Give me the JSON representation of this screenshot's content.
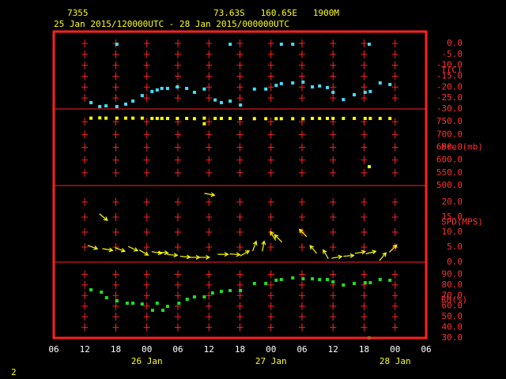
{
  "header": {
    "station": "7355",
    "location": "73.63S   160.65E   1900M",
    "period": "25 Jan 2015/120000UTC - 28 Jan 2015/000000UTC"
  },
  "footer": "2",
  "chart_data": [
    {
      "type": "scatter",
      "ylabel": "T(C)",
      "color": "#40e0ff",
      "ylim": [
        -30,
        5.4
      ],
      "yticks": [
        {
          "value": 0,
          "label": "0.0"
        },
        {
          "value": -5,
          "label": "-5.0"
        },
        {
          "value": -10,
          "label": "-10.0"
        },
        {
          "value": -15,
          "label": "-15.0"
        },
        {
          "value": -20,
          "label": "-20.0"
        },
        {
          "value": -25,
          "label": "-25.0"
        },
        {
          "value": -30,
          "label": "-30.0"
        }
      ],
      "x": [
        7.2,
        8.9,
        10.1,
        12.2,
        12.2,
        13.9,
        15.3,
        17.1,
        19.0,
        20.0,
        20.9,
        22.0,
        23.9,
        25.7,
        27.2,
        29.1,
        31.2,
        32.4,
        34.1,
        34.1,
        36.1,
        38.8,
        41.0,
        43.0,
        44.0,
        44.0,
        46.2,
        46.2,
        48.2,
        50.0,
        51.4,
        52.9,
        54.0,
        56.0,
        58.1,
        60.2,
        61.2,
        61.0,
        63.1,
        65.0
      ],
      "values": [
        -27.1,
        -28.9,
        -28.6,
        -28.9,
        -0.4,
        -27.8,
        -26.4,
        -23.9,
        -22.0,
        -21.3,
        -20.6,
        -20.6,
        -19.9,
        -20.6,
        -22.4,
        -20.9,
        -25.9,
        -27.1,
        -26.4,
        -0.4,
        -28.2,
        -20.9,
        -20.9,
        -19.2,
        -18.4,
        -0.4,
        -18.1,
        -0.4,
        -17.7,
        -19.9,
        -19.5,
        -20.2,
        -22.4,
        -25.7,
        -23.5,
        -22.4,
        -22.0,
        -0.4,
        -18.1,
        -18.8
      ]
    },
    {
      "type": "scatter",
      "ylabel": "Pre (mb)",
      "color": "#ffff00",
      "ylim": [
        500,
        800
      ],
      "yticks": [
        {
          "value": 750,
          "label": "750.0"
        },
        {
          "value": 700,
          "label": "700.0"
        },
        {
          "value": 650,
          "label": "650.0"
        },
        {
          "value": 600,
          "label": "600.0"
        },
        {
          "value": 550,
          "label": "550.0"
        },
        {
          "value": 500,
          "label": "500.0"
        }
      ],
      "x": [
        7.2,
        8.9,
        10.1,
        12.2,
        13.9,
        15.3,
        17.1,
        19.0,
        20.0,
        20.9,
        22.0,
        23.9,
        25.7,
        27.2,
        29.1,
        29.1,
        31.2,
        32.4,
        34.1,
        36.1,
        38.8,
        41.0,
        43.0,
        44.0,
        46.2,
        48.2,
        50.0,
        51.4,
        52.9,
        54.0,
        56.0,
        58.1,
        60.2,
        61.0,
        61.2,
        63.1,
        65.0
      ],
      "values": [
        764,
        765,
        764,
        764,
        764,
        764,
        764,
        763,
        763,
        763,
        763,
        763,
        763,
        762,
        764,
        742,
        763,
        763,
        763,
        763,
        762,
        762,
        762,
        762,
        762,
        762,
        763,
        763,
        763,
        763,
        763,
        763,
        763,
        574,
        763,
        763,
        763
      ]
    },
    {
      "type": "wind",
      "ylabel": "SPD(MPS)",
      "color": "#ffff00",
      "ylim": [
        0,
        25.5
      ],
      "yticks": [
        {
          "value": 20,
          "label": "20.0"
        },
        {
          "value": 15,
          "label": "15.0"
        },
        {
          "value": 10,
          "label": "10.0"
        },
        {
          "value": 5,
          "label": "5.0"
        },
        {
          "value": 0,
          "label": "0.0"
        }
      ],
      "x": [
        7.5,
        9.6,
        10.4,
        12.8,
        15.3,
        17.4,
        19.9,
        21.1,
        22.9,
        25.4,
        27.2,
        29.1,
        30.1,
        32.7,
        35.0,
        36.9,
        38.8,
        40.5,
        42.4,
        43.4,
        48.2,
        50.2,
        52.6,
        54.7,
        57.0,
        59.2,
        61.3,
        63.6,
        65.6
      ],
      "values": [
        5.0,
        15.0,
        4.2,
        4.2,
        4.5,
        3.2,
        3.2,
        3.2,
        2.4,
        1.8,
        1.6,
        1.6,
        22.6,
        2.6,
        2.6,
        2.9,
        5.3,
        5.3,
        8.7,
        7.9,
        9.7,
        4.2,
        2.6,
        1.6,
        2.1,
        3.2,
        3.2,
        1.8,
        4.5
      ],
      "directions": [
        110,
        130,
        100,
        110,
        115,
        120,
        100,
        95,
        95,
        95,
        90,
        90,
        100,
        90,
        95,
        60,
        20,
        10,
        330,
        315,
        315,
        320,
        330,
        80,
        85,
        80,
        75,
        40,
        45
      ]
    },
    {
      "type": "scatter",
      "ylabel": "RH(%)",
      "color": "#20e020",
      "ylim": [
        30,
        101.5
      ],
      "yticks": [
        {
          "value": 90,
          "label": "90.0"
        },
        {
          "value": 80,
          "label": "80.0"
        },
        {
          "value": 70,
          "label": "70.0"
        },
        {
          "value": 60,
          "label": "60.0"
        },
        {
          "value": 50,
          "label": "50.0"
        },
        {
          "value": 40,
          "label": "40.0"
        },
        {
          "value": 30,
          "label": "30.0"
        }
      ],
      "x": [
        7.2,
        9.2,
        10.2,
        12.2,
        14.2,
        15.3,
        17.1,
        19.1,
        20.0,
        21.1,
        22.0,
        24.2,
        25.8,
        27.2,
        29.1,
        30.7,
        32.4,
        34.1,
        36.1,
        38.8,
        41.0,
        43.0,
        44.0,
        46.2,
        48.2,
        50.0,
        51.4,
        52.9,
        54.0,
        56.0,
        58.1,
        60.2,
        61.2,
        61.0,
        63.1,
        65.0
      ],
      "values": [
        75.4,
        73.2,
        68.0,
        65.0,
        62.8,
        62.8,
        62.0,
        56.1,
        62.8,
        56.1,
        59.8,
        62.8,
        66.5,
        68.7,
        68.7,
        72.4,
        73.9,
        74.7,
        74.7,
        81.4,
        81.4,
        84.4,
        85.1,
        86.6,
        85.8,
        85.8,
        85.1,
        85.1,
        82.9,
        79.9,
        81.4,
        82.1,
        82.1,
        30.0,
        85.1,
        84.4
      ],
      "xlim": [
        0,
        72
      ],
      "xticks": [
        {
          "value": 0,
          "label": "06"
        },
        {
          "value": 6,
          "label": "12"
        },
        {
          "value": 12,
          "label": "18"
        },
        {
          "value": 18,
          "label": "00"
        },
        {
          "value": 24,
          "label": "06"
        },
        {
          "value": 30,
          "label": "12"
        },
        {
          "value": 36,
          "label": "18"
        },
        {
          "value": 42,
          "label": "00"
        },
        {
          "value": 48,
          "label": "06"
        },
        {
          "value": 54,
          "label": "12"
        },
        {
          "value": 60,
          "label": "18"
        },
        {
          "value": 66,
          "label": "00"
        },
        {
          "value": 72,
          "label": "06"
        }
      ],
      "date_labels": [
        {
          "value": 18,
          "label": "26 Jan"
        },
        {
          "value": 42,
          "label": "27 Jan"
        },
        {
          "value": 66,
          "label": "28 Jan"
        }
      ]
    }
  ]
}
